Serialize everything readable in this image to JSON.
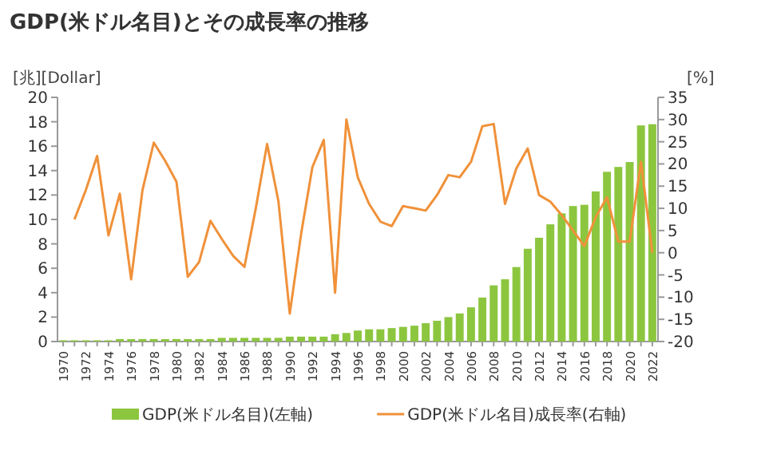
{
  "chart_data": {
    "type": "bar",
    "title": "GDP(米ドル名目)とその成長率の推移",
    "ylabel": "[兆][Dollar]",
    "y2label": "[%]",
    "categories": [
      "1970",
      null,
      "1972",
      null,
      "1974",
      null,
      "1976",
      null,
      "1978",
      null,
      "1980",
      null,
      "1982",
      null,
      "1984",
      null,
      "1986",
      null,
      "1988",
      null,
      "1990",
      null,
      "1992",
      null,
      "1994",
      null,
      "1996",
      null,
      "1998",
      null,
      "2000",
      null,
      "2002",
      null,
      "2004",
      null,
      "2006",
      null,
      "2008",
      null,
      "2010",
      null,
      "2012",
      null,
      "2014",
      null,
      "2016",
      null,
      "2018",
      null,
      "2020",
      null,
      "2022"
    ],
    "series": [
      {
        "name": "GDP(米ドル名目)(左軸)",
        "color": "#8cc63f",
        "values": [
          0.1,
          0.1,
          0.1,
          0.1,
          0.1,
          0.2,
          0.2,
          0.2,
          0.2,
          0.2,
          0.2,
          0.2,
          0.2,
          0.2,
          0.3,
          0.3,
          0.3,
          0.3,
          0.3,
          0.3,
          0.4,
          0.4,
          0.4,
          0.4,
          0.6,
          0.7,
          0.9,
          1,
          1,
          1.1,
          1.2,
          1.3,
          1.5,
          1.7,
          2,
          2.3,
          2.8,
          3.6,
          4.6,
          5.1,
          6.1,
          7.6,
          8.5,
          9.6,
          10.5,
          11.1,
          11.2,
          12.3,
          13.9,
          14.3,
          14.7,
          17.7,
          17.8
        ]
      },
      {
        "name": "GDP(米ドル名目)成長率(右軸)",
        "type": "line",
        "axis": "y2",
        "color": "#f0913a",
        "values": [
          null,
          7.5,
          14.1,
          21.8,
          3.9,
          13.3,
          -6,
          14.1,
          24.8,
          20.7,
          16,
          -5.4,
          -2.1,
          7.2,
          3.1,
          -0.7,
          -3.2,
          10,
          24.5,
          11.6,
          -13.7,
          4.2,
          19.3,
          25.4,
          -9,
          30,
          17,
          11,
          7,
          6,
          10.5,
          10,
          9.5,
          13,
          17.5,
          17,
          20.5,
          28.5,
          29,
          11,
          19,
          23.5,
          13,
          11.5,
          8.5,
          5,
          1.5,
          8,
          12.5,
          2.5,
          2.5,
          20.5,
          0
        ]
      }
    ],
    "ylim": [
      0,
      20
    ],
    "yticks": [
      0,
      2,
      4,
      6,
      8,
      10,
      12,
      14,
      16,
      18,
      20
    ],
    "y2lim": [
      -20,
      35
    ],
    "y2ticks": [
      -20,
      -15,
      -10,
      -5,
      0,
      5,
      10,
      15,
      20,
      25,
      30,
      35
    ],
    "legend": "bottom",
    "grid": false
  }
}
